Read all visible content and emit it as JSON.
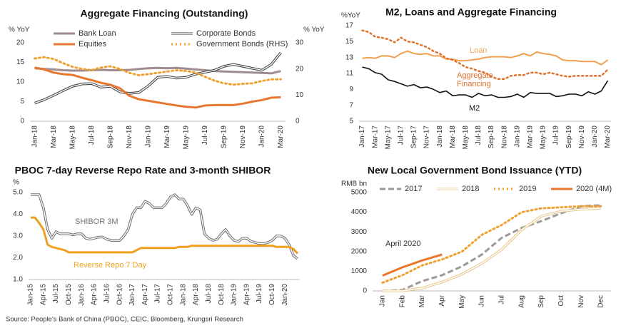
{
  "source": "Source: People's Bank of China (PBOC), CEIC, Bloomberg, Krungsri Research",
  "chart_data": [
    {
      "type": "line",
      "title": "Aggregate Financing (Outstanding)",
      "y_label": "% YoY",
      "y2_label": "% YoY",
      "legend": "top",
      "categories": [
        "Jan-18",
        null,
        "Mar-18",
        null,
        "May-18",
        null,
        "Jul-18",
        null,
        "Sep-18",
        null,
        "Nov-18",
        null,
        "Jan-19",
        null,
        "Mar-19",
        null,
        "May-19",
        null,
        "Jul-19",
        null,
        "Sep-19",
        null,
        "Nov-19",
        null,
        "Jan-20",
        null,
        "Mar-20"
      ],
      "ylim": [
        0,
        20
      ],
      "yticks": [
        0,
        5,
        10,
        15,
        20
      ],
      "y2lim": [
        0,
        30
      ],
      "y2ticks": [
        0,
        10,
        20,
        30
      ],
      "grid": false,
      "series": [
        {
          "name": "Bank Loan",
          "color": "#a08c8c",
          "style": "solid",
          "width": 3,
          "values": [
            13.5,
            13.3,
            13.2,
            13.0,
            12.9,
            12.9,
            13.0,
            13.1,
            13.0,
            13.0,
            13.1,
            13.3,
            13.5,
            13.6,
            13.5,
            13.6,
            13.4,
            13.2,
            13.0,
            12.8,
            12.7,
            12.6,
            12.5,
            12.4,
            12.3,
            12.2,
            12.8
          ]
        },
        {
          "name": "Corporate Bonds",
          "color": "#404040",
          "style": "double",
          "width": 3,
          "values": [
            4.6,
            5.5,
            6.6,
            7.8,
            8.9,
            9.5,
            9.6,
            8.7,
            8.9,
            7.5,
            7.1,
            7.3,
            9.0,
            11.2,
            11.4,
            11.0,
            11.2,
            12.0,
            12.5,
            13.0,
            14.0,
            14.5,
            14.0,
            13.5,
            13.0,
            14.5,
            17.5
          ]
        },
        {
          "name": "Equities",
          "color": "#e8772e",
          "style": "solid",
          "width": 3,
          "values": [
            13.7,
            13.2,
            12.4,
            12.0,
            11.8,
            11.1,
            10.5,
            9.8,
            9.3,
            8.4,
            6.5,
            5.6,
            5.2,
            4.8,
            4.4,
            4.0,
            3.7,
            3.5,
            4.0,
            4.1,
            4.1,
            4.1,
            4.5,
            5.0,
            5.4,
            6.0,
            6.1
          ]
        },
        {
          "name": "Government Bonds (RHS)",
          "color": "#f0a030",
          "style": "dotted",
          "width": 3,
          "axis": "y2",
          "values": [
            24.0,
            24.5,
            23.8,
            22.2,
            20.8,
            20.0,
            19.5,
            20.5,
            21.0,
            20.0,
            18.5,
            17.6,
            18.0,
            18.5,
            19.0,
            19.5,
            19.2,
            18.6,
            17.0,
            15.5,
            14.5,
            14.0,
            14.3,
            14.5,
            15.4,
            16.0,
            16.0
          ]
        }
      ]
    },
    {
      "type": "line",
      "title": "M2, Loans and Aggregate Financing",
      "y_label": "%YoY",
      "legend": "inline",
      "categories": [
        "Jan-17",
        null,
        "Mar-17",
        null,
        "May-17",
        null,
        "Jul-17",
        null,
        "Sep-17",
        null,
        "Nov-17",
        null,
        "Jan-18",
        null,
        "Mar-18",
        null,
        "May-18",
        null,
        "Jul-18",
        null,
        "Sep-18",
        null,
        "Nov-18",
        null,
        "Jan-19",
        null,
        "Mar-19",
        null,
        "May-19",
        null,
        "Jul-19",
        null,
        "Sep-19",
        null,
        "Nov-19",
        null,
        "Jan-20",
        null,
        "Mar-20"
      ],
      "ylim": [
        5,
        17
      ],
      "yticks": [
        5,
        7,
        9,
        11,
        13,
        15,
        17
      ],
      "grid": false,
      "series": [
        {
          "name": "Loan",
          "color": "#f0a050",
          "style": "solid",
          "width": 2,
          "values": [
            12.9,
            13.0,
            12.9,
            13.2,
            13.2,
            13.0,
            13.5,
            13.8,
            13.5,
            13.4,
            13.5,
            13.2,
            13.2,
            12.8,
            12.8,
            12.6,
            12.6,
            12.7,
            12.8,
            13.0,
            13.1,
            13.1,
            13.1,
            13.0,
            13.2,
            13.5,
            13.2,
            13.7,
            13.5,
            13.4,
            13.2,
            12.7,
            12.6,
            12.6,
            12.5,
            12.5,
            12.5,
            12.1,
            12.7
          ]
        },
        {
          "name": "Aggregate Financing",
          "color": "#e0702a",
          "style": "dotted",
          "width": 2.5,
          "values": [
            16.4,
            16.2,
            15.6,
            15.5,
            15.3,
            14.9,
            15.5,
            15.0,
            14.9,
            14.6,
            14.3,
            13.8,
            13.5,
            12.9,
            12.7,
            12.3,
            11.8,
            11.6,
            11.3,
            11.1,
            10.6,
            10.3,
            10.3,
            10.7,
            10.8,
            10.8,
            11.1,
            11.1,
            10.9,
            11.1,
            10.9,
            10.7,
            10.6,
            10.7,
            10.7,
            10.7,
            10.7,
            10.7,
            11.5
          ]
        },
        {
          "name": "M2",
          "color": "#111111",
          "style": "solid",
          "width": 1.6,
          "values": [
            11.8,
            11.6,
            11.1,
            10.9,
            10.2,
            10.0,
            9.7,
            9.4,
            9.6,
            9.2,
            9.3,
            9.0,
            8.6,
            8.8,
            8.2,
            8.3,
            8.3,
            8.0,
            8.5,
            8.2,
            8.3,
            8.0,
            8.0,
            8.1,
            8.4,
            8.0,
            8.6,
            8.5,
            8.5,
            8.5,
            8.1,
            8.2,
            8.4,
            8.4,
            8.2,
            8.7,
            8.4,
            8.8,
            10.1
          ]
        }
      ]
    },
    {
      "type": "line",
      "title": "PBOC 7-day Reverse Repo Rate and 3-month SHIBOR",
      "y_label": "%",
      "legend": "inline",
      "categories": [
        "Jan-15",
        null,
        null,
        "Apr-15",
        null,
        null,
        "Jul-15",
        null,
        null,
        "Oct-15",
        null,
        null,
        "Jan-16",
        null,
        null,
        "Apr-16",
        null,
        null,
        "Jul-16",
        null,
        null,
        "Oct-16",
        null,
        null,
        "Jan-17",
        null,
        null,
        "Apr-17",
        null,
        null,
        "Jul-17",
        null,
        null,
        "Oct-17",
        null,
        null,
        "Jan-18",
        null,
        null,
        "Apr-18",
        null,
        null,
        "Jul-18",
        null,
        null,
        "Oct-18",
        null,
        null,
        "Jan-19",
        null,
        null,
        "Apr-19",
        null,
        null,
        "Jul-19",
        null,
        null,
        "Oct-19",
        null,
        null,
        "Jan-20",
        null,
        null,
        null
      ],
      "ylim": [
        1,
        5
      ],
      "yticks": [
        {
          "value": 1,
          "label": "1.0"
        },
        {
          "value": 2,
          "label": "2.0"
        },
        {
          "value": 3,
          "label": "3.0"
        },
        {
          "value": 4,
          "label": "4.0"
        },
        {
          "value": 5,
          "label": "5.0"
        }
      ],
      "grid": false,
      "series": [
        {
          "name": "SHIBOR 3M",
          "color": "#707070",
          "style": "double",
          "width": 3,
          "values": [
            4.9,
            4.9,
            4.9,
            4.3,
            3.3,
            2.9,
            3.2,
            3.1,
            3.1,
            3.1,
            3.05,
            3.1,
            3.1,
            2.9,
            2.85,
            2.9,
            2.95,
            2.95,
            2.85,
            2.8,
            2.8,
            2.8,
            3.0,
            3.3,
            4.0,
            4.3,
            4.3,
            4.6,
            4.5,
            4.3,
            4.3,
            4.3,
            4.5,
            4.8,
            4.9,
            4.7,
            4.7,
            4.4,
            4.0,
            4.3,
            4.2,
            3.1,
            2.9,
            2.8,
            2.85,
            3.1,
            3.3,
            3.0,
            2.8,
            2.75,
            2.9,
            2.9,
            2.75,
            2.7,
            2.65,
            2.65,
            2.7,
            2.8,
            3.0,
            3.0,
            2.9,
            2.6,
            2.1,
            1.95
          ]
        },
        {
          "name": "Reverse Repo 7 Day",
          "color": "#f0a020",
          "style": "solid",
          "width": 3,
          "values": [
            3.85,
            3.85,
            3.6,
            3.3,
            2.6,
            2.5,
            2.45,
            2.4,
            2.35,
            2.25,
            2.25,
            2.25,
            2.25,
            2.25,
            2.25,
            2.25,
            2.25,
            2.25,
            2.25,
            2.25,
            2.25,
            2.25,
            2.25,
            2.25,
            2.25,
            2.35,
            2.45,
            2.45,
            2.45,
            2.45,
            2.45,
            2.45,
            2.45,
            2.45,
            2.45,
            2.5,
            2.5,
            2.5,
            2.55,
            2.55,
            2.55,
            2.55,
            2.55,
            2.55,
            2.55,
            2.55,
            2.55,
            2.55,
            2.55,
            2.55,
            2.55,
            2.55,
            2.55,
            2.55,
            2.55,
            2.55,
            2.55,
            2.55,
            2.5,
            2.5,
            2.5,
            2.5,
            2.4,
            2.2
          ]
        }
      ]
    },
    {
      "type": "line",
      "title": "New Local Government Bond Issuance (YTD)",
      "y_label": "RMB bn",
      "legend": "top",
      "annotations": [
        "April 2020"
      ],
      "categories": [
        "Jan",
        "Feb",
        "Mar",
        "Apr",
        "May",
        "Jun",
        "Jul",
        "Aug",
        "Sep",
        "Oct",
        "Nov",
        "Dec"
      ],
      "ylim": [
        0,
        5000
      ],
      "yticks": [
        0,
        1000,
        2000,
        3000,
        4000,
        5000
      ],
      "grid": false,
      "series": [
        {
          "name": "2017",
          "color": "#a09898",
          "style": "dashed",
          "width": 3,
          "values": [
            0,
            50,
            500,
            800,
            1250,
            1850,
            2700,
            3200,
            3550,
            3950,
            4300,
            4350
          ]
        },
        {
          "name": "2018",
          "color": "#e8c890",
          "style": "double",
          "width": 3,
          "values": [
            0,
            0,
            150,
            450,
            850,
            1400,
            2100,
            3100,
            3800,
            4050,
            4150,
            4200
          ]
        },
        {
          "name": "2019",
          "color": "#f0a030",
          "style": "dotted",
          "width": 3,
          "values": [
            420,
            800,
            1300,
            1600,
            2000,
            2850,
            3350,
            4000,
            4200,
            4250,
            4300,
            4300
          ]
        },
        {
          "name": "2020 (4M)",
          "color": "#e8772e",
          "style": "solid",
          "width": 3,
          "values": [
            780,
            1200,
            1550,
            1850,
            null,
            null,
            null,
            null,
            null,
            null,
            null,
            null
          ]
        }
      ]
    }
  ]
}
